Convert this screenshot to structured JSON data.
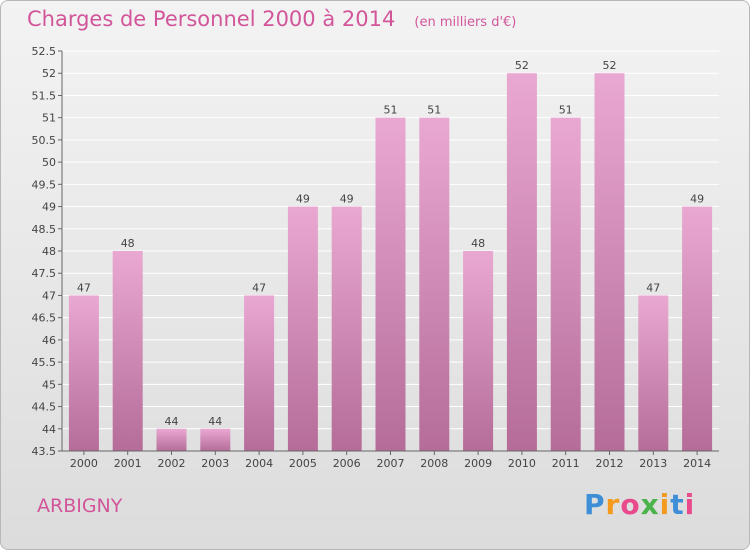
{
  "title": "Charges de Personnel 2000 à 2014",
  "subtitle": "(en milliers d'€)",
  "commune": "ARBIGNY",
  "brand": {
    "text": "Proxiti",
    "colors": [
      "#3f8fd8",
      "#f39a1f",
      "#e94a8c",
      "#4bb34b",
      "#f39a1f",
      "#3f8fd8",
      "#e94a8c"
    ]
  },
  "colors": {
    "bar_top": "#e9a8d2",
    "bar_bottom": "#b56c99",
    "grid": "#ffffff",
    "text": "#444444",
    "accent": "#d2559a"
  },
  "chart_data": {
    "type": "bar",
    "categories": [
      "2000",
      "2001",
      "2002",
      "2003",
      "2004",
      "2005",
      "2006",
      "2007",
      "2008",
      "2009",
      "2010",
      "2011",
      "2012",
      "2013",
      "2014"
    ],
    "values": [
      47,
      48,
      44,
      44,
      47,
      49,
      49,
      51,
      51,
      48,
      52,
      51,
      52,
      47,
      49
    ],
    "data_labels": [
      "47",
      "48",
      "44",
      "44",
      "47",
      "49",
      "49",
      "51",
      "51",
      "48",
      "52",
      "51",
      "52",
      "47",
      "49"
    ],
    "ylim": [
      43.5,
      52.5
    ],
    "yticks": [
      "43.5",
      "44",
      "44.5",
      "45",
      "45.5",
      "46",
      "46.5",
      "47",
      "47.5",
      "48",
      "48.5",
      "49",
      "49.5",
      "50",
      "50.5",
      "51",
      "51.5",
      "52",
      "52.5"
    ],
    "grid": true,
    "title": "Charges de Personnel 2000 à 2014",
    "xlabel": "",
    "ylabel": ""
  }
}
